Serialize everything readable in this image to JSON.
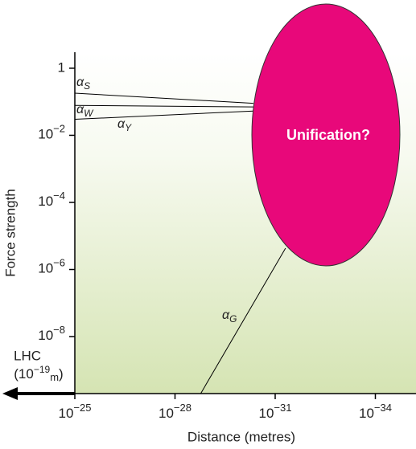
{
  "chart_data": {
    "type": "line",
    "x_label": "Distance (metres)",
    "y_label": "Force strength",
    "xscale": "log",
    "yscale": "log",
    "xlim": [
      1e-25,
      1e-35
    ],
    "ylim": [
      2e-10,
      3
    ],
    "xticks": [
      {
        "value": 1e-25,
        "label": "10−25"
      },
      {
        "value": 1e-28,
        "label": "10−28"
      },
      {
        "value": 1e-31,
        "label": "10−31"
      },
      {
        "value": 1e-34,
        "label": "10−34"
      }
    ],
    "yticks": [
      1,
      {
        "value": 0.01,
        "label": "10−2"
      },
      {
        "value": 0.0001,
        "label": "10−4"
      },
      {
        "value": 1e-06,
        "label": "10−6"
      },
      {
        "value": 1e-08,
        "label": "10−8"
      }
    ],
    "series": [
      {
        "name": "αS",
        "color": "#000000",
        "x": [
          1e-25,
          4.5e-31
        ],
        "values": [
          0.18,
          0.09
        ]
      },
      {
        "name": "αW",
        "color": "#000000",
        "x": [
          1e-25,
          4.5e-31
        ],
        "values": [
          0.078,
          0.07
        ]
      },
      {
        "name": "αY",
        "color": "#000000",
        "x": [
          1e-25,
          4.5e-31
        ],
        "values": [
          0.03,
          0.053
        ]
      },
      {
        "name": "αG",
        "color": "#000000",
        "x": [
          1.7e-29,
          4.9e-32
        ],
        "values": [
          2e-10,
          4.3e-06
        ]
      }
    ],
    "annotations": {
      "region": "Unification?",
      "lhc": "LHC",
      "lhc_distance": [
        "(10",
        "−19",
        "m",
        ")"
      ]
    }
  }
}
